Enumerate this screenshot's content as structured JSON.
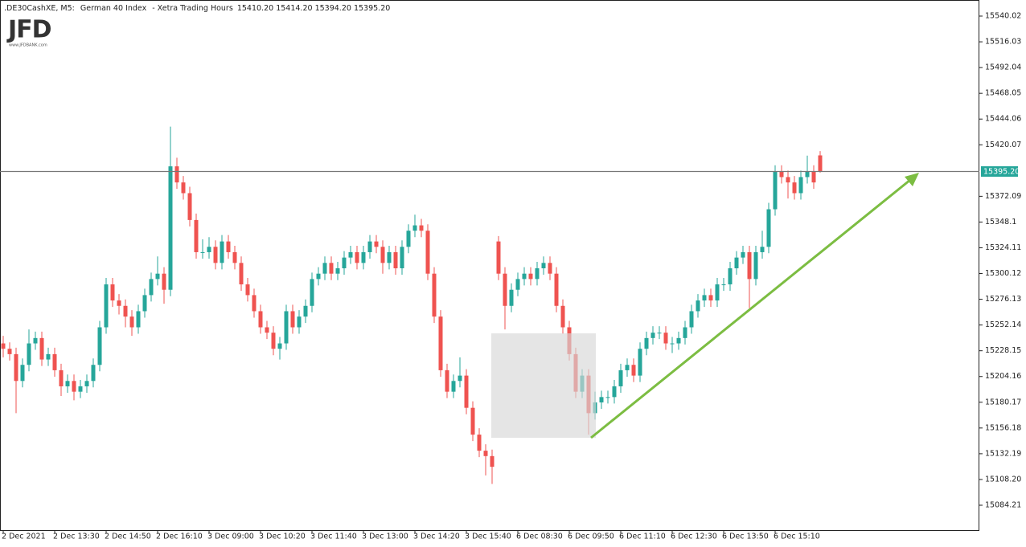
{
  "logo": {
    "text": "JFD",
    "url": "www.JFDBANK.com"
  },
  "chart_data": {
    "type": "candlestick",
    "header": {
      "symbol": ".DE30CashXE, M5:",
      "name": "German 40 Index",
      "session": "- Xetra Trading Hours",
      "ohlc": [
        "15410.20",
        "15414.20",
        "15394.20",
        "15395.20"
      ]
    },
    "categories": [
      "2 Dec 2021",
      null,
      null,
      null,
      null,
      null,
      null,
      null,
      "2 Dec 13:30",
      null,
      null,
      null,
      null,
      null,
      null,
      null,
      "2 Dec 14:50",
      null,
      null,
      null,
      null,
      null,
      null,
      null,
      "2 Dec 16:10",
      null,
      null,
      null,
      null,
      null,
      null,
      null,
      "3 Dec 09:00",
      null,
      null,
      null,
      null,
      null,
      null,
      null,
      "3 Dec 10:20",
      null,
      null,
      null,
      null,
      null,
      null,
      null,
      "3 Dec 11:40",
      null,
      null,
      null,
      null,
      null,
      null,
      null,
      "3 Dec 13:00",
      null,
      null,
      null,
      null,
      null,
      null,
      null,
      "3 Dec 14:20",
      null,
      null,
      null,
      null,
      null,
      null,
      null,
      "3 Dec 15:40",
      null,
      null,
      null,
      null,
      null,
      null,
      null,
      "6 Dec 08:30",
      null,
      null,
      null,
      null,
      null,
      null,
      null,
      "6 Dec 09:50",
      null,
      null,
      null,
      null,
      null,
      null,
      null,
      "6 Dec 11:10",
      null,
      null,
      null,
      null,
      null,
      null,
      null,
      "6 Dec 12:30",
      null,
      null,
      null,
      null,
      null,
      null,
      null,
      "6 Dec 13:50",
      null,
      null,
      null,
      null,
      null,
      null,
      null,
      "6 Dec 15:10",
      null,
      null,
      null,
      null,
      null,
      null,
      null
    ],
    "open": [
      15235,
      15230,
      15225,
      15200,
      15215,
      15235,
      15240,
      15220,
      15225,
      15210,
      15195,
      15200,
      15190,
      15195,
      15200,
      15215,
      15250,
      15290,
      15275,
      15270,
      15260,
      15250,
      15265,
      15280,
      15295,
      15300,
      15285,
      15400,
      15385,
      15375,
      15350,
      15320,
      15320,
      15325,
      15310,
      15330,
      15320,
      15310,
      15290,
      15280,
      15265,
      15250,
      15245,
      15230,
      15235,
      15265,
      15250,
      15260,
      15270,
      15295,
      15300,
      15310,
      15300,
      15305,
      15315,
      15320,
      15310,
      15320,
      15330,
      15325,
      15310,
      15320,
      15305,
      15325,
      15340,
      15345,
      15340,
      15300,
      15260,
      15210,
      15190,
      15200,
      15205,
      15175,
      15150,
      15135,
      15130,
      15330,
      15300,
      15270,
      15285,
      15295,
      15300,
      15295,
      15305,
      15310,
      15300,
      15270,
      15250,
      15225,
      15190,
      15205,
      15170,
      15180,
      15185,
      15185,
      15195,
      15210,
      15215,
      15205,
      15230,
      15240,
      15245,
      15245,
      15235,
      15235,
      15240,
      15250,
      15265,
      15275,
      15280,
      15275,
      15290,
      15290,
      15305,
      15315,
      15320,
      15295,
      15320,
      15325,
      15360,
      15395,
      15390,
      15385,
      15375,
      15390,
      15395,
      15410.2
    ],
    "high": [
      15242,
      15236,
      15231,
      15221,
      15248,
      15246,
      15246,
      15231,
      15231,
      15216,
      15206,
      15206,
      15201,
      15206,
      15221,
      15256,
      15296,
      15296,
      15281,
      15276,
      15266,
      15271,
      15286,
      15301,
      15316,
      15306,
      15437,
      15408,
      15391,
      15381,
      15356,
      15332,
      15334,
      15331,
      15336,
      15336,
      15326,
      15316,
      15296,
      15286,
      15271,
      15256,
      15251,
      15241,
      15271,
      15271,
      15266,
      15276,
      15301,
      15306,
      15316,
      15316,
      15311,
      15321,
      15326,
      15326,
      15326,
      15336,
      15336,
      15331,
      15326,
      15326,
      15331,
      15346,
      15355,
      15351,
      15346,
      15306,
      15266,
      15216,
      15206,
      15222,
      15211,
      15181,
      15156,
      15141,
      15136,
      15335,
      15306,
      15291,
      15301,
      15306,
      15306,
      15311,
      15316,
      15316,
      15306,
      15276,
      15256,
      15231,
      15211,
      15211,
      15190,
      15191,
      15191,
      15201,
      15216,
      15221,
      15221,
      15236,
      15246,
      15251,
      15251,
      15251,
      15241,
      15246,
      15256,
      15271,
      15281,
      15286,
      15286,
      15296,
      15296,
      15311,
      15321,
      15326,
      15326,
      15326,
      15340,
      15366,
      15401,
      15401,
      15396,
      15391,
      15396,
      15410,
      15401,
      15414.2
    ],
    "low": [
      15222,
      15219,
      15170,
      15194,
      15209,
      15229,
      15214,
      15214,
      15204,
      15186,
      15189,
      15182,
      15184,
      15189,
      15194,
      15209,
      15244,
      15269,
      15262,
      15250,
      15242,
      15244,
      15259,
      15274,
      15289,
      15272,
      15279,
      15379,
      15369,
      15344,
      15314,
      15314,
      15314,
      15304,
      15304,
      15314,
      15304,
      15284,
      15274,
      15259,
      15244,
      15239,
      15224,
      15220,
      15229,
      15244,
      15244,
      15254,
      15264,
      15289,
      15294,
      15294,
      15294,
      15299,
      15309,
      15304,
      15304,
      15314,
      15319,
      15300,
      15304,
      15299,
      15299,
      15319,
      15334,
      15334,
      15294,
      15254,
      15204,
      15184,
      15184,
      15194,
      15169,
      15144,
      15129,
      15112,
      15104,
      15294,
      15248,
      15264,
      15279,
      15289,
      15289,
      15289,
      15299,
      15294,
      15264,
      15244,
      15219,
      15184,
      15184,
      15150,
      15164,
      15174,
      15179,
      15179,
      15189,
      15204,
      15199,
      15199,
      15224,
      15234,
      15239,
      15229,
      15226,
      15229,
      15234,
      15244,
      15259,
      15269,
      15269,
      15269,
      15284,
      15284,
      15299,
      15309,
      15268,
      15289,
      15314,
      15319,
      15354,
      15384,
      15370,
      15369,
      15369,
      15384,
      15379,
      15394.2
    ],
    "close": [
      15230,
      15225,
      15200,
      15215,
      15235,
      15240,
      15220,
      15225,
      15210,
      15195,
      15200,
      15190,
      15195,
      15200,
      15215,
      15250,
      15290,
      15275,
      15270,
      15260,
      15250,
      15265,
      15280,
      15295,
      15300,
      15285,
      15400,
      15385,
      15375,
      15350,
      15320,
      15320,
      15325,
      15310,
      15330,
      15320,
      15310,
      15290,
      15280,
      15265,
      15250,
      15245,
      15230,
      15235,
      15265,
      15250,
      15260,
      15270,
      15295,
      15300,
      15310,
      15300,
      15305,
      15315,
      15320,
      15310,
      15320,
      15330,
      15325,
      15310,
      15320,
      15305,
      15325,
      15340,
      15345,
      15340,
      15300,
      15260,
      15210,
      15190,
      15200,
      15205,
      15175,
      15150,
      15135,
      15130,
      15120,
      15300,
      15270,
      15285,
      15295,
      15300,
      15295,
      15305,
      15310,
      15300,
      15270,
      15250,
      15225,
      15190,
      15205,
      15170,
      15180,
      15185,
      15185,
      15195,
      15210,
      15215,
      15205,
      15230,
      15240,
      15245,
      15245,
      15235,
      15235,
      15240,
      15250,
      15265,
      15275,
      15280,
      15275,
      15290,
      15290,
      15305,
      15315,
      15320,
      15295,
      15320,
      15325,
      15360,
      15395,
      15390,
      15385,
      15375,
      15390,
      15395,
      15385,
      15395.2
    ],
    "up_color": "#26a69a",
    "down_color": "#ef5350",
    "ylim": [
      15061,
      15555
    ],
    "yticks": [
      15540.02,
      15516.03,
      15492.04,
      15468.05,
      15444.06,
      15420.07,
      15372.09,
      15348.1,
      15324.11,
      15300.12,
      15276.13,
      15252.14,
      15228.15,
      15204.16,
      15180.17,
      15156.18,
      15132.19,
      {
        "value": 15108.2,
        "label": "15108.20"
      },
      15084.21
    ],
    "current_price": {
      "value": 15395.2,
      "label": "15395.20"
    }
  }
}
